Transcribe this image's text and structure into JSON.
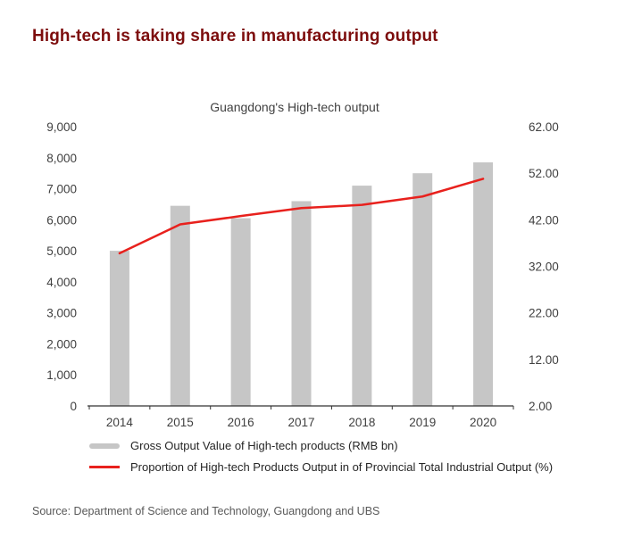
{
  "page": {
    "title": "High-tech is taking share in manufacturing output",
    "source": "Source: Department of Science and Technology, Guangdong and UBS"
  },
  "colors": {
    "heading": "#7d0d0d",
    "bar": "#c6c6c6",
    "line": "#e8211d",
    "axis": "#333333",
    "tick_text": "#404040"
  },
  "chart_data": {
    "type": "bar",
    "title": "Guangdong's High-tech output",
    "categories": [
      "2014",
      "2015",
      "2016",
      "2017",
      "2018",
      "2019",
      "2020"
    ],
    "series": [
      {
        "name": "Gross Output Value of High-tech products (RMB bn)",
        "type": "bar",
        "axis": "left",
        "values": [
          5000,
          6450,
          6050,
          6600,
          7100,
          7500,
          7850
        ]
      },
      {
        "name": "Proportion of High-tech Products Output in of Provincial Total Industrial Output (%)",
        "type": "line",
        "axis": "right",
        "values": [
          34.8,
          41.0,
          42.8,
          44.5,
          45.2,
          47.0,
          50.8
        ]
      }
    ],
    "y_left": {
      "min": 0,
      "max": 9000,
      "step": 1000,
      "tick_labels": [
        "0",
        "1,000",
        "2,000",
        "3,000",
        "4,000",
        "5,000",
        "6,000",
        "7,000",
        "8,000",
        "9,000"
      ]
    },
    "y_right": {
      "min": 2,
      "max": 62,
      "step": 10,
      "tick_labels": [
        "2.00",
        "12.00",
        "22.00",
        "32.00",
        "42.00",
        "52.00",
        "62.00"
      ]
    },
    "grid": false,
    "legend_position": "bottom"
  }
}
